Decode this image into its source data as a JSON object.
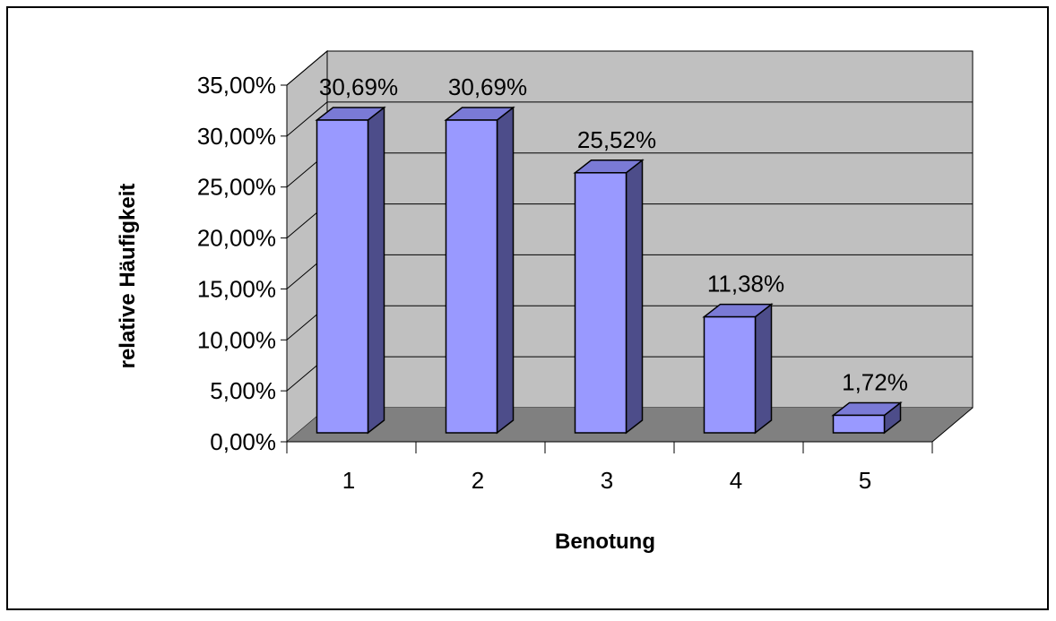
{
  "chart_data": {
    "type": "bar",
    "title": "",
    "xlabel": "Benotung",
    "ylabel": "relative Häufigkeit",
    "categories": [
      "1",
      "2",
      "3",
      "4",
      "5"
    ],
    "values": [
      30.69,
      30.69,
      25.52,
      11.38,
      1.72
    ],
    "value_labels": [
      "30,69%",
      "30,69%",
      "25,52%",
      "11,38%",
      "1,72%"
    ],
    "y_ticks": [
      0,
      5,
      10,
      15,
      20,
      25,
      30,
      35
    ],
    "y_tick_labels": [
      "0,00%",
      "5,00%",
      "10,00%",
      "15,00%",
      "20,00%",
      "25,00%",
      "30,00%",
      "35,00%"
    ],
    "ylim": [
      0,
      35
    ],
    "grid": true,
    "legend": "none",
    "three_d": true
  },
  "colors": {
    "bar_front": "#9999ff",
    "bar_top": "#7a7ad6",
    "bar_side": "#4d4d8a",
    "back_wall": "#c0c0c0",
    "side_wall": "#c0c0c0",
    "floor": "#808080",
    "grid": "#000000",
    "border": "#000000"
  }
}
